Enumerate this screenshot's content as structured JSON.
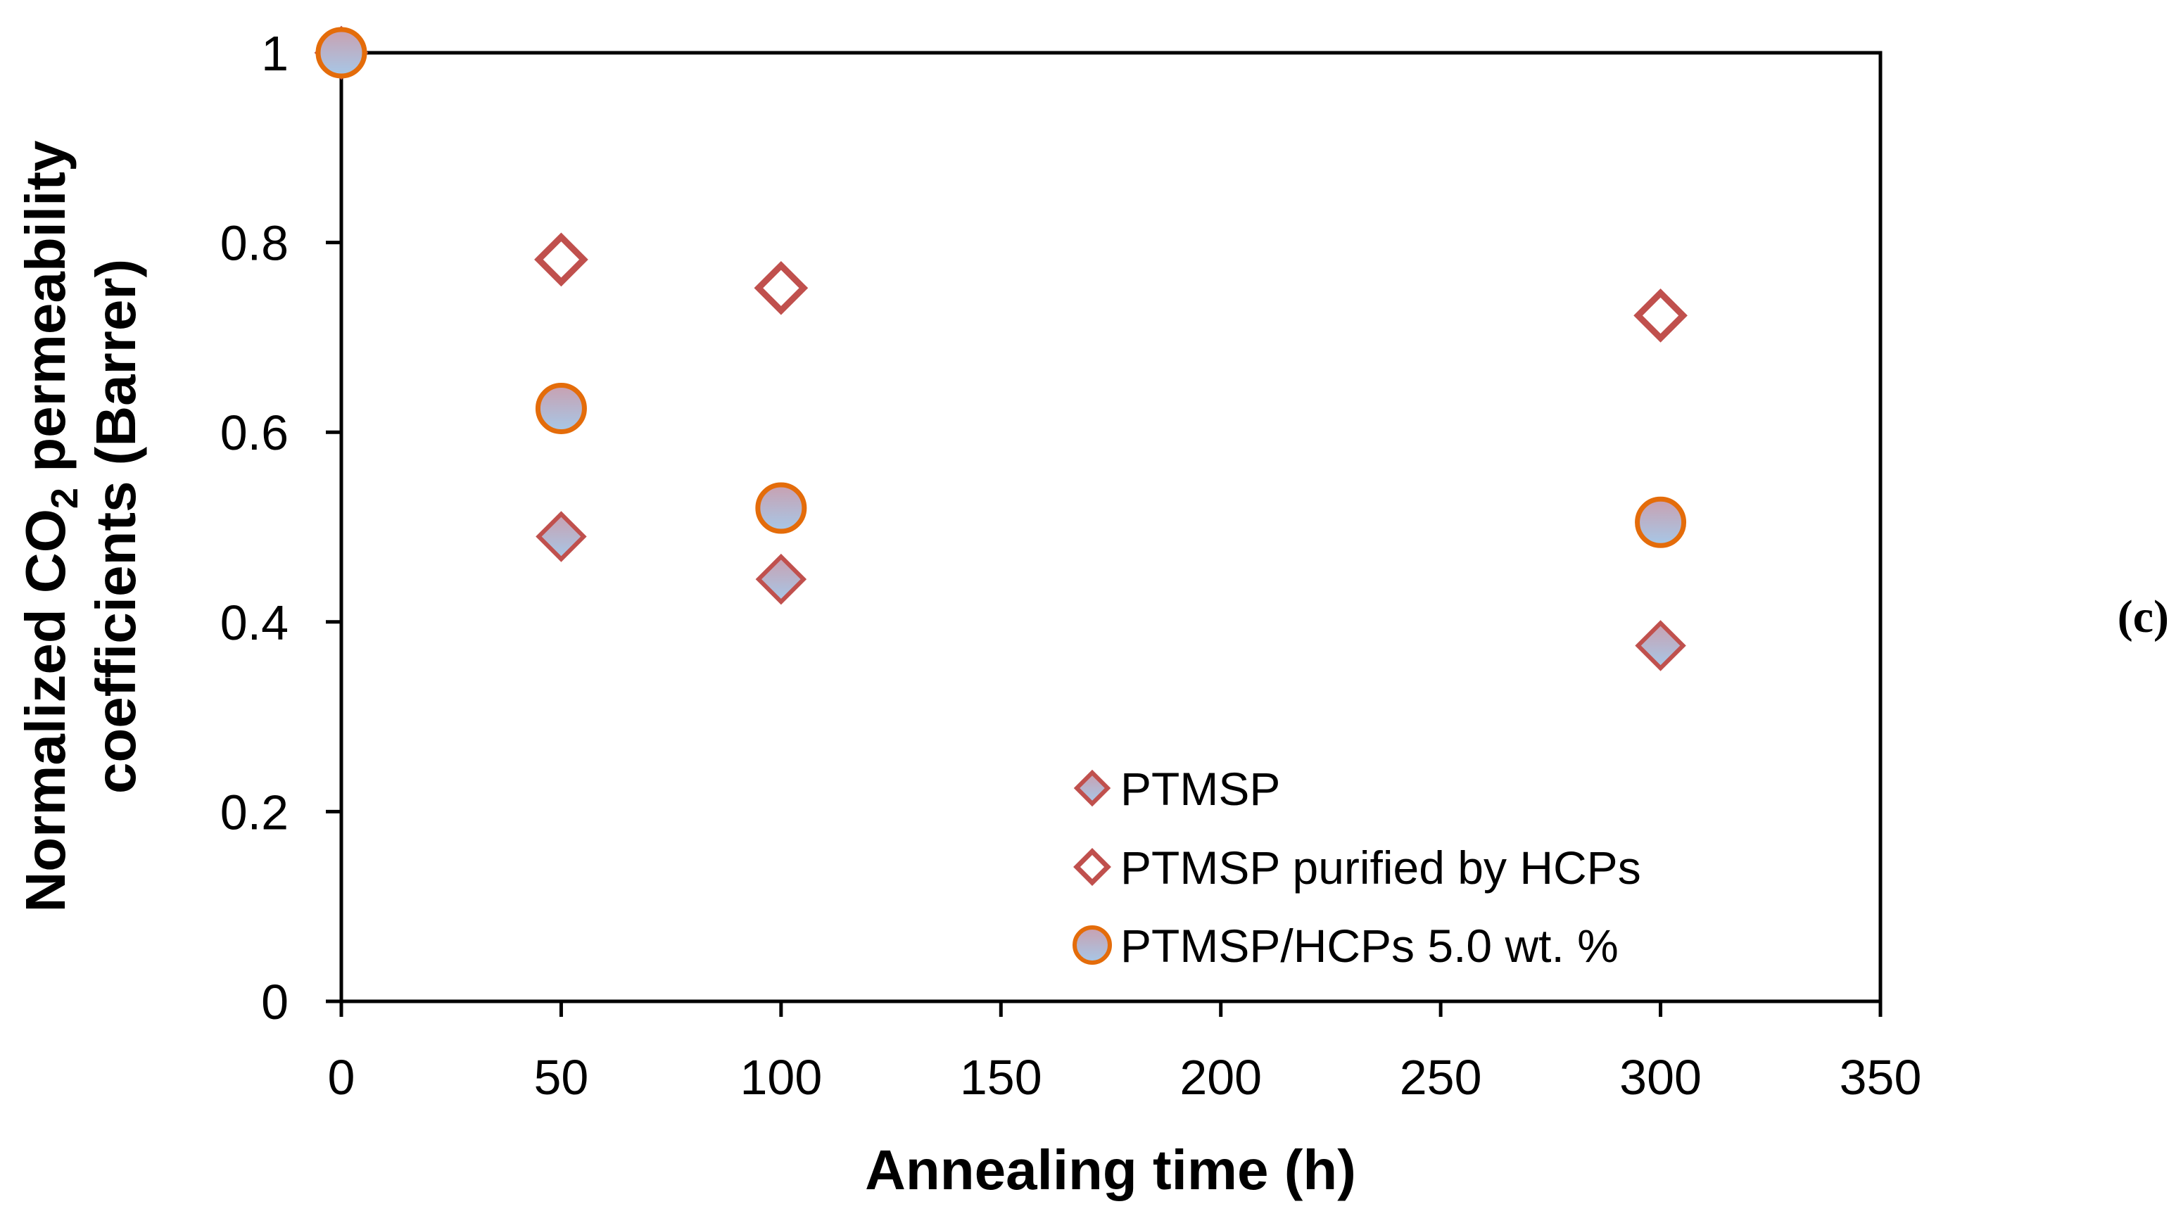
{
  "chart_data": {
    "type": "scatter",
    "xlabel": "Annealing time (h)",
    "ylabel_line1_pre": "Normalized CO",
    "ylabel_line1_sub": "2",
    "ylabel_line1_post": " permeability",
    "ylabel_line2": "coefficients (Barrer)",
    "xlim": [
      0,
      350
    ],
    "ylim": [
      0,
      1
    ],
    "xticks": [
      0,
      50,
      100,
      150,
      200,
      250,
      300,
      350
    ],
    "yticks": [
      0,
      0.2,
      0.4,
      0.6,
      0.8,
      1
    ],
    "xtick_labels": [
      "0",
      "50",
      "100",
      "150",
      "200",
      "250",
      "300",
      "350"
    ],
    "ytick_labels": [
      "0",
      "0.2",
      "0.4",
      "0.6",
      "0.8",
      "1"
    ],
    "grid": false,
    "legend_position": "bottom-right",
    "panel_label": "(c)",
    "series": [
      {
        "name": "PTMSP",
        "marker": "diamond-filled",
        "x": [
          0,
          50,
          100,
          300
        ],
        "y": [
          1.0,
          0.49,
          0.445,
          0.375
        ]
      },
      {
        "name": "PTMSP purified by HCPs",
        "marker": "diamond-open",
        "x": [
          0,
          50,
          100,
          300
        ],
        "y": [
          1.0,
          0.782,
          0.752,
          0.723
        ]
      },
      {
        "name": "PTMSP/HCPs 5.0 wt. %",
        "marker": "circle-filled",
        "x": [
          0,
          50,
          100,
          300
        ],
        "y": [
          1.0,
          0.625,
          0.52,
          0.505
        ]
      }
    ]
  },
  "colors": {
    "diamond_stroke": "#c0504d",
    "circle_stroke": "#e46c0a",
    "fill_top": "#c9a0b0",
    "fill_bottom": "#a6c8e8",
    "axis": "#000000"
  }
}
